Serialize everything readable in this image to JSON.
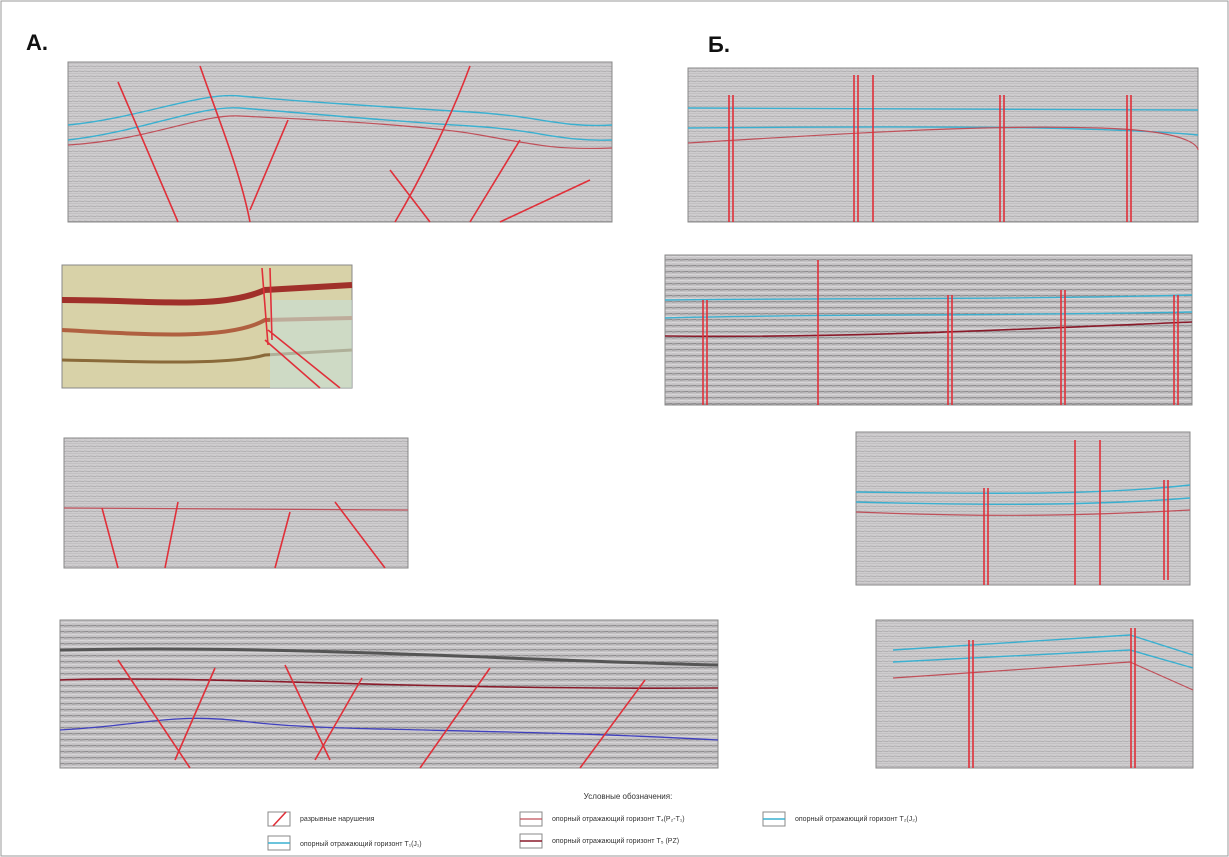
{
  "panels": {
    "a": {
      "label": "А."
    },
    "b": {
      "label": "Б."
    }
  },
  "legend": {
    "title": "Условные обозначения:",
    "items": [
      "разрывные нарушения",
      "опорный отражающий горизонт Т₁(J₁)",
      "опорный отражающий горизонт Т₄(P₂-T₁)",
      "опорный отражающий горизонт Т₅ (PZ)",
      "опорный отражающий горизонт Т₂(J₂)"
    ]
  }
}
